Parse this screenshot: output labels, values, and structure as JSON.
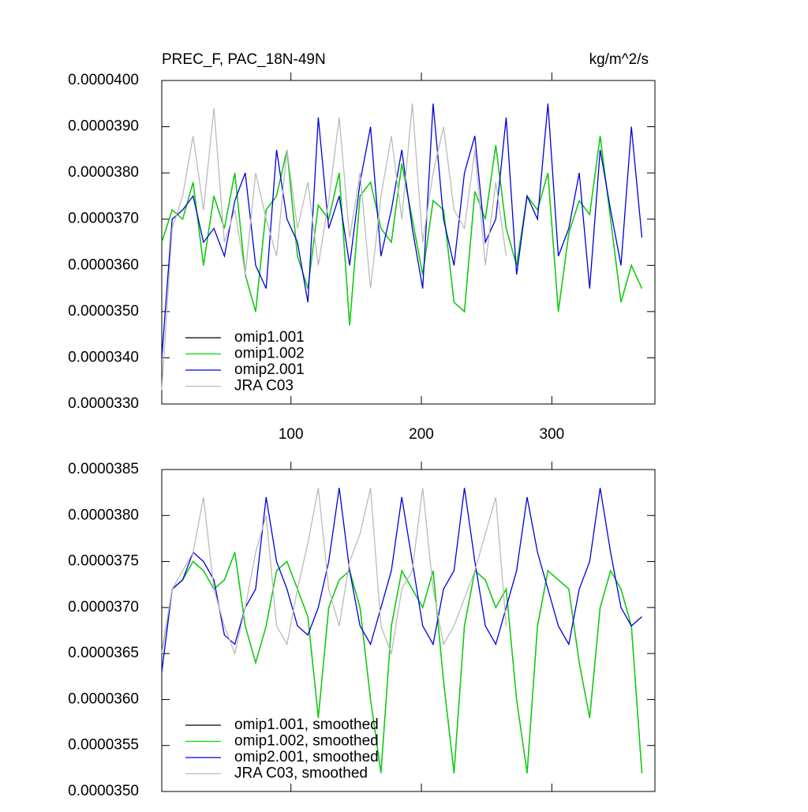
{
  "chart_data": [
    {
      "type": "line",
      "title": "PREC_F, PAC_18N-49N",
      "units": "kg/m^2/s",
      "x": [
        1,
        9,
        17,
        25,
        33,
        41,
        49,
        57,
        65,
        73,
        81,
        89,
        97,
        105,
        113,
        121,
        129,
        137,
        145,
        153,
        161,
        169,
        177,
        185,
        193,
        201,
        209,
        217,
        225,
        233,
        241,
        249,
        257,
        265,
        273,
        281,
        289,
        297,
        305,
        313,
        321,
        329,
        337,
        345,
        353,
        361,
        369
      ],
      "xlim": [
        1,
        379
      ],
      "xticks": [
        100,
        200,
        300
      ],
      "ylim": [
        3.3e-05,
        4e-05
      ],
      "yticks": [
        {
          "value": 3.3e-05,
          "label": "0.0000330"
        },
        {
          "value": 3.4e-05,
          "label": "0.0000340"
        },
        {
          "value": 3.5e-05,
          "label": "0.0000350"
        },
        {
          "value": 3.6e-05,
          "label": "0.0000360"
        },
        {
          "value": 3.7e-05,
          "label": "0.0000370"
        },
        {
          "value": 3.8e-05,
          "label": "0.0000380"
        },
        {
          "value": 3.9e-05,
          "label": "0.0000390"
        },
        {
          "value": 4e-05,
          "label": "0.0000400"
        }
      ],
      "legend": "lower left",
      "series": [
        {
          "name": "omip1.001",
          "color": "#000000",
          "values": [
            3.65e-05,
            3.72e-05,
            3.7e-05,
            3.78e-05,
            3.6e-05,
            3.75e-05,
            3.68e-05,
            3.8e-05,
            3.58e-05,
            3.5e-05,
            3.72e-05,
            3.75e-05,
            3.85e-05,
            3.62e-05,
            3.55e-05,
            3.73e-05,
            3.7e-05,
            3.8e-05,
            3.47e-05,
            3.75e-05,
            3.78e-05,
            3.68e-05,
            3.65e-05,
            3.82e-05,
            3.7e-05,
            3.58e-05,
            3.74e-05,
            3.72e-05,
            3.52e-05,
            3.5e-05,
            3.76e-05,
            3.7e-05,
            3.86e-05,
            3.68e-05,
            3.6e-05,
            3.75e-05,
            3.72e-05,
            3.8e-05,
            3.5e-05,
            3.67e-05,
            3.74e-05,
            3.71e-05,
            3.88e-05,
            3.7e-05,
            3.52e-05,
            3.6e-05,
            3.55e-05
          ]
        },
        {
          "name": "omip1.002",
          "color": "#00dd00",
          "values": [
            3.65e-05,
            3.72e-05,
            3.7e-05,
            3.78e-05,
            3.6e-05,
            3.75e-05,
            3.68e-05,
            3.8e-05,
            3.58e-05,
            3.5e-05,
            3.72e-05,
            3.75e-05,
            3.85e-05,
            3.62e-05,
            3.55e-05,
            3.73e-05,
            3.7e-05,
            3.8e-05,
            3.47e-05,
            3.75e-05,
            3.78e-05,
            3.68e-05,
            3.65e-05,
            3.82e-05,
            3.7e-05,
            3.58e-05,
            3.74e-05,
            3.72e-05,
            3.52e-05,
            3.5e-05,
            3.76e-05,
            3.7e-05,
            3.86e-05,
            3.68e-05,
            3.6e-05,
            3.75e-05,
            3.72e-05,
            3.8e-05,
            3.5e-05,
            3.67e-05,
            3.74e-05,
            3.71e-05,
            3.88e-05,
            3.7e-05,
            3.52e-05,
            3.6e-05,
            3.55e-05
          ]
        },
        {
          "name": "omip2.001",
          "color": "#0000dd",
          "values": [
            3.4e-05,
            3.7e-05,
            3.72e-05,
            3.75e-05,
            3.65e-05,
            3.68e-05,
            3.62e-05,
            3.74e-05,
            3.8e-05,
            3.6e-05,
            3.55e-05,
            3.85e-05,
            3.7e-05,
            3.65e-05,
            3.52e-05,
            3.92e-05,
            3.68e-05,
            3.75e-05,
            3.6e-05,
            3.78e-05,
            3.9e-05,
            3.62e-05,
            3.72e-05,
            3.85e-05,
            3.68e-05,
            3.55e-05,
            3.95e-05,
            3.7e-05,
            3.6e-05,
            3.8e-05,
            3.88e-05,
            3.65e-05,
            3.7e-05,
            3.92e-05,
            3.58e-05,
            3.75e-05,
            3.7e-05,
            3.95e-05,
            3.62e-05,
            3.68e-05,
            3.8e-05,
            3.55e-05,
            3.85e-05,
            3.72e-05,
            3.6e-05,
            3.9e-05,
            3.66e-05
          ]
        },
        {
          "name": "JRA C03",
          "color": "#bbbbbb",
          "values": [
            3.33e-05,
            3.68e-05,
            3.75e-05,
            3.88e-05,
            3.72e-05,
            3.94e-05,
            3.65e-05,
            3.72e-05,
            3.58e-05,
            3.8e-05,
            3.7e-05,
            3.62e-05,
            3.85e-05,
            3.68e-05,
            3.78e-05,
            3.6e-05,
            3.74e-05,
            3.92e-05,
            3.66e-05,
            3.8e-05,
            3.55e-05,
            3.75e-05,
            3.88e-05,
            3.7e-05,
            3.95e-05,
            3.65e-05,
            3.8e-05,
            3.9e-05,
            3.72e-05,
            3.68e-05,
            3.85e-05,
            3.6e-05,
            3.78e-05,
            3.62e-05,
            null,
            null,
            null,
            null,
            null,
            null,
            null,
            null,
            null,
            null,
            null,
            null,
            null
          ]
        }
      ]
    },
    {
      "type": "line",
      "x": [
        1,
        9,
        17,
        25,
        33,
        41,
        49,
        57,
        65,
        73,
        81,
        89,
        97,
        105,
        113,
        121,
        129,
        137,
        145,
        153,
        161,
        169,
        177,
        185,
        193,
        201,
        209,
        217,
        225,
        233,
        241,
        249,
        257,
        265,
        273,
        281,
        289,
        297,
        305,
        313,
        321,
        329,
        337,
        345,
        353,
        361,
        369
      ],
      "xlim": [
        1,
        379
      ],
      "ylim": [
        3.5e-05,
        3.85e-05
      ],
      "yticks": [
        {
          "value": 3.5e-05,
          "label": "0.0000350"
        },
        {
          "value": 3.55e-05,
          "label": "0.0000355"
        },
        {
          "value": 3.6e-05,
          "label": "0.0000360"
        },
        {
          "value": 3.65e-05,
          "label": "0.0000365"
        },
        {
          "value": 3.7e-05,
          "label": "0.0000370"
        },
        {
          "value": 3.75e-05,
          "label": "0.0000375"
        },
        {
          "value": 3.8e-05,
          "label": "0.0000380"
        },
        {
          "value": 3.85e-05,
          "label": "0.0000385"
        }
      ],
      "legend": "lower left",
      "series": [
        {
          "name": "omip1.001, smoothed",
          "color": "#000000",
          "values": [
            3.65e-05,
            3.72e-05,
            3.73e-05,
            3.75e-05,
            3.74e-05,
            3.72e-05,
            3.73e-05,
            3.76e-05,
            3.68e-05,
            3.64e-05,
            3.68e-05,
            3.74e-05,
            3.75e-05,
            3.72e-05,
            3.69e-05,
            3.58e-05,
            3.7e-05,
            3.73e-05,
            3.74e-05,
            3.7e-05,
            3.6e-05,
            3.52e-05,
            3.68e-05,
            3.74e-05,
            3.72e-05,
            3.7e-05,
            3.74e-05,
            3.62e-05,
            3.52e-05,
            3.68e-05,
            3.74e-05,
            3.73e-05,
            3.7e-05,
            3.72e-05,
            3.6e-05,
            3.52e-05,
            3.68e-05,
            3.74e-05,
            3.73e-05,
            3.72e-05,
            3.64e-05,
            3.58e-05,
            3.7e-05,
            3.74e-05,
            3.72e-05,
            3.68e-05,
            3.52e-05
          ]
        },
        {
          "name": "omip1.002, smoothed",
          "color": "#00dd00",
          "values": [
            3.65e-05,
            3.72e-05,
            3.73e-05,
            3.75e-05,
            3.74e-05,
            3.72e-05,
            3.73e-05,
            3.76e-05,
            3.68e-05,
            3.64e-05,
            3.68e-05,
            3.74e-05,
            3.75e-05,
            3.72e-05,
            3.69e-05,
            3.58e-05,
            3.7e-05,
            3.73e-05,
            3.74e-05,
            3.7e-05,
            3.6e-05,
            3.52e-05,
            3.68e-05,
            3.74e-05,
            3.72e-05,
            3.7e-05,
            3.74e-05,
            3.62e-05,
            3.52e-05,
            3.68e-05,
            3.74e-05,
            3.73e-05,
            3.7e-05,
            3.72e-05,
            3.6e-05,
            3.52e-05,
            3.68e-05,
            3.74e-05,
            3.73e-05,
            3.72e-05,
            3.64e-05,
            3.58e-05,
            3.7e-05,
            3.74e-05,
            3.72e-05,
            3.68e-05,
            3.52e-05
          ]
        },
        {
          "name": "omip2.001, smoothed",
          "color": "#0000dd",
          "values": [
            3.63e-05,
            3.72e-05,
            3.73e-05,
            3.76e-05,
            3.75e-05,
            3.73e-05,
            3.67e-05,
            3.66e-05,
            3.7e-05,
            3.72e-05,
            3.82e-05,
            3.75e-05,
            3.72e-05,
            3.68e-05,
            3.67e-05,
            3.7e-05,
            3.75e-05,
            3.83e-05,
            3.74e-05,
            3.68e-05,
            3.66e-05,
            3.7e-05,
            3.74e-05,
            3.82e-05,
            3.75e-05,
            3.68e-05,
            3.66e-05,
            3.72e-05,
            3.74e-05,
            3.83e-05,
            3.75e-05,
            3.68e-05,
            3.66e-05,
            3.7e-05,
            3.74e-05,
            3.82e-05,
            3.76e-05,
            3.72e-05,
            3.68e-05,
            3.66e-05,
            3.72e-05,
            3.75e-05,
            3.83e-05,
            3.76e-05,
            3.7e-05,
            3.68e-05,
            3.69e-05
          ]
        },
        {
          "name": "JRA C03, smoothed",
          "color": "#bbbbbb",
          "values": [
            3.65e-05,
            3.72e-05,
            3.74e-05,
            3.76e-05,
            3.82e-05,
            3.72e-05,
            3.68e-05,
            3.65e-05,
            3.7e-05,
            3.76e-05,
            3.8e-05,
            3.68e-05,
            3.66e-05,
            3.72e-05,
            3.77e-05,
            3.83e-05,
            3.72e-05,
            3.68e-05,
            3.75e-05,
            3.78e-05,
            3.83e-05,
            3.68e-05,
            3.65e-05,
            3.72e-05,
            3.74e-05,
            3.83e-05,
            3.72e-05,
            3.66e-05,
            3.68e-05,
            3.71e-05,
            3.74e-05,
            3.78e-05,
            3.82e-05,
            3.68e-05,
            null,
            null,
            null,
            null,
            null,
            null,
            null,
            null,
            null,
            null,
            null,
            null,
            null
          ]
        }
      ]
    }
  ]
}
